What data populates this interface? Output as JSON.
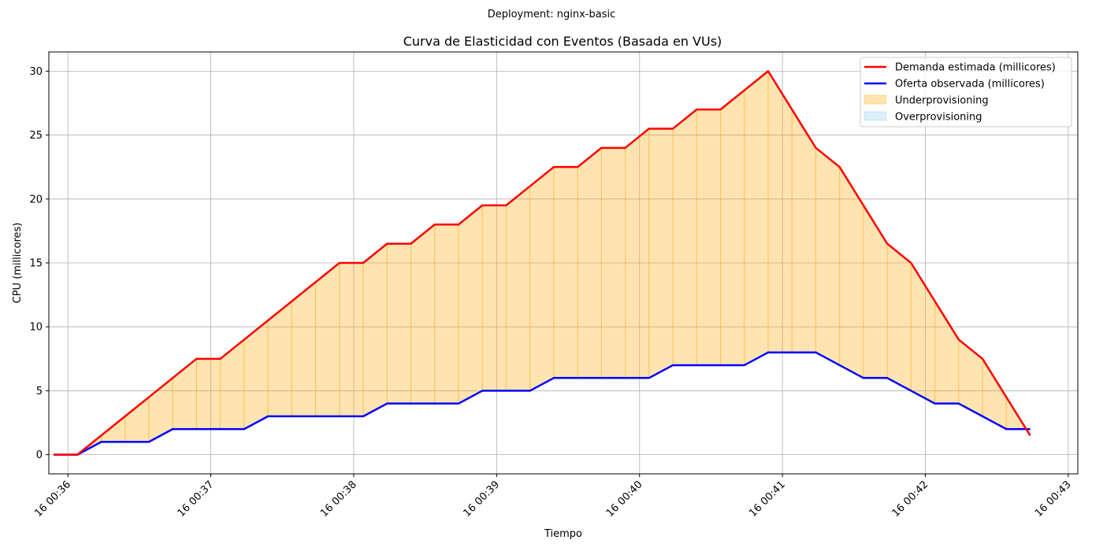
{
  "suptitle": "Deployment: nginx-basic",
  "chart_data": {
    "type": "line",
    "title": "Curva de Elasticidad con Eventos (Basada en VUs)",
    "xlabel": "Tiempo",
    "ylabel": "CPU (millicores)",
    "x_axis": "time",
    "xlim": [
      "00:35:52",
      "00:43:04"
    ],
    "ylim": [
      -1.5,
      31.5
    ],
    "xticks": [
      {
        "t": "00:36:00",
        "label": "16 00:36"
      },
      {
        "t": "00:37:00",
        "label": "16 00:37"
      },
      {
        "t": "00:38:00",
        "label": "16 00:38"
      },
      {
        "t": "00:39:00",
        "label": "16 00:39"
      },
      {
        "t": "00:40:00",
        "label": "16 00:40"
      },
      {
        "t": "00:41:00",
        "label": "16 00:41"
      },
      {
        "t": "00:42:00",
        "label": "16 00:42"
      },
      {
        "t": "00:43:00",
        "label": "16 00:43"
      }
    ],
    "yticks": [
      0,
      5,
      10,
      15,
      20,
      25,
      30
    ],
    "grid": true,
    "legend_position": "top-right",
    "x": [
      "00:35:54",
      "00:36:04",
      "00:36:14",
      "00:36:24",
      "00:36:34",
      "00:36:44",
      "00:36:54",
      "00:37:04",
      "00:37:14",
      "00:37:24",
      "00:37:34",
      "00:37:44",
      "00:37:54",
      "00:38:04",
      "00:38:14",
      "00:38:24",
      "00:38:34",
      "00:38:44",
      "00:38:54",
      "00:39:04",
      "00:39:14",
      "00:39:24",
      "00:39:34",
      "00:39:44",
      "00:39:54",
      "00:40:04",
      "00:40:14",
      "00:40:24",
      "00:40:34",
      "00:40:44",
      "00:40:54",
      "00:41:04",
      "00:41:14",
      "00:41:24",
      "00:41:34",
      "00:41:44",
      "00:41:54",
      "00:42:04",
      "00:42:14",
      "00:42:24",
      "00:42:34",
      "00:42:44"
    ],
    "series": [
      {
        "name": "Demanda estimada (millicores)",
        "color": "#ff0000",
        "values": [
          0,
          0,
          1.5,
          3,
          4.5,
          6,
          7.5,
          7.5,
          9,
          10.5,
          12,
          13.5,
          15,
          15,
          16.5,
          16.5,
          18,
          18,
          19.5,
          19.5,
          21,
          22.5,
          22.5,
          24,
          24,
          25.5,
          25.5,
          27,
          27,
          28.5,
          30,
          27,
          24,
          22.5,
          19.5,
          16.5,
          15,
          12,
          9,
          7.5,
          4.5,
          1.5
        ]
      },
      {
        "name": "Oferta observada (millicores)",
        "color": "#0000ff",
        "values": [
          0,
          0,
          1,
          1,
          1,
          2,
          2,
          2,
          2,
          3,
          3,
          3,
          3,
          3,
          4,
          4,
          4,
          4,
          5,
          5,
          5,
          6,
          6,
          6,
          6,
          6,
          7,
          7,
          7,
          7,
          8,
          8,
          8,
          7,
          6,
          6,
          5,
          4,
          4,
          3,
          2,
          2
        ]
      }
    ],
    "fills": [
      {
        "name": "Underprovisioning",
        "color": "#ffa500"
      },
      {
        "name": "Overprovisioning",
        "color": "#87ceeb"
      }
    ]
  }
}
